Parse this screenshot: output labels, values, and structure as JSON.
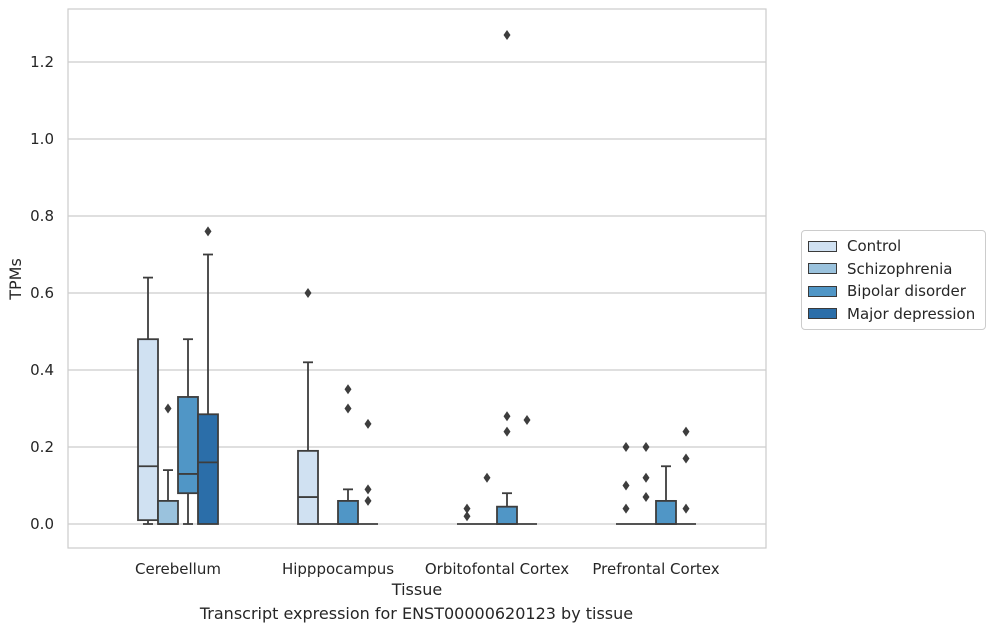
{
  "chart_data": {
    "type": "box",
    "title": "",
    "xlabel": "Tissue",
    "ylabel": "TPMs",
    "caption": "Transcript expression for ENST00000620123 by tissue",
    "ylim": [
      -0.06,
      1.34
    ],
    "yticks": [
      "0.0",
      "0.2",
      "0.4",
      "0.6",
      "0.8",
      "1.0",
      "1.2"
    ],
    "grid": "horizontal",
    "legend_position": "right",
    "categories": [
      "Cerebellum",
      "Hipppocampus",
      "Orbitofontal Cortex",
      "Prefrontal Cortex"
    ],
    "series": [
      {
        "name": "Control",
        "color": "#d0e1f2",
        "boxes": [
          {
            "q1": 0.01,
            "median": 0.15,
            "q3": 0.48,
            "whislo": 0.0,
            "whishi": 0.64,
            "fliers": []
          },
          {
            "q1": 0.0,
            "median": 0.07,
            "q3": 0.19,
            "whislo": 0.0,
            "whishi": 0.42,
            "fliers": [
              0.6
            ]
          },
          {
            "q1": 0.0,
            "median": 0.0,
            "q3": 0.0,
            "whislo": 0.0,
            "whishi": 0.0,
            "fliers": [
              0.02,
              0.04
            ]
          },
          {
            "q1": 0.0,
            "median": 0.0,
            "q3": 0.0,
            "whislo": 0.0,
            "whishi": 0.0,
            "fliers": [
              0.04,
              0.1,
              0.2
            ]
          }
        ]
      },
      {
        "name": "Schizophrenia",
        "color": "#9ac2dd",
        "boxes": [
          {
            "q1": 0.0,
            "median": 0.0,
            "q3": 0.06,
            "whislo": 0.0,
            "whishi": 0.14,
            "fliers": [
              0.3
            ]
          },
          {
            "q1": 0.0,
            "median": 0.0,
            "q3": 0.0,
            "whislo": 0.0,
            "whishi": 0.0,
            "fliers": []
          },
          {
            "q1": 0.0,
            "median": 0.0,
            "q3": 0.0,
            "whislo": 0.0,
            "whishi": 0.0,
            "fliers": [
              0.12
            ]
          },
          {
            "q1": 0.0,
            "median": 0.0,
            "q3": 0.0,
            "whislo": 0.0,
            "whishi": 0.0,
            "fliers": [
              0.07,
              0.12,
              0.2
            ]
          }
        ]
      },
      {
        "name": "Bipolar disorder",
        "color": "#5096c6",
        "boxes": [
          {
            "q1": 0.08,
            "median": 0.13,
            "q3": 0.33,
            "whislo": 0.0,
            "whishi": 0.48,
            "fliers": []
          },
          {
            "q1": 0.0,
            "median": 0.0,
            "q3": 0.06,
            "whislo": 0.0,
            "whishi": 0.09,
            "fliers": [
              0.3,
              0.35
            ]
          },
          {
            "q1": 0.0,
            "median": 0.0,
            "q3": 0.045,
            "whislo": 0.0,
            "whishi": 0.08,
            "fliers": [
              0.24,
              0.28,
              1.27
            ]
          },
          {
            "q1": 0.0,
            "median": 0.0,
            "q3": 0.06,
            "whislo": 0.0,
            "whishi": 0.15,
            "fliers": []
          }
        ]
      },
      {
        "name": "Major depression",
        "color": "#2b6ea9",
        "boxes": [
          {
            "q1": 0.0,
            "median": 0.16,
            "q3": 0.285,
            "whislo": 0.0,
            "whishi": 0.7,
            "fliers": [
              0.76
            ]
          },
          {
            "q1": 0.0,
            "median": 0.0,
            "q3": 0.0,
            "whislo": 0.0,
            "whishi": 0.0,
            "fliers": [
              0.06,
              0.09,
              0.26
            ]
          },
          {
            "q1": 0.0,
            "median": 0.0,
            "q3": 0.0,
            "whislo": 0.0,
            "whishi": 0.0,
            "fliers": [
              0.27
            ]
          },
          {
            "q1": 0.0,
            "median": 0.0,
            "q3": 0.0,
            "whislo": 0.0,
            "whishi": 0.0,
            "fliers": [
              0.04,
              0.17,
              0.24
            ]
          }
        ]
      }
    ]
  }
}
